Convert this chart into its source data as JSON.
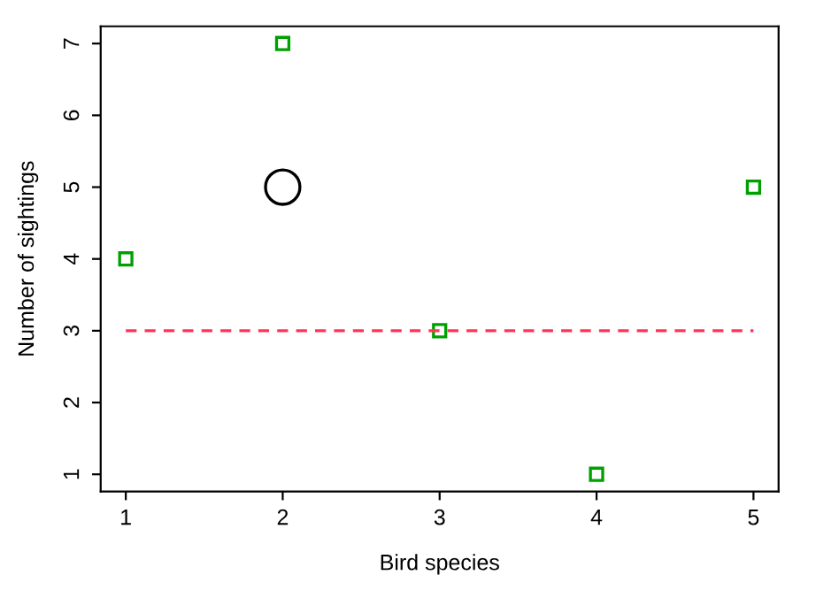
{
  "chart_data": {
    "type": "scatter",
    "xlabel": "Bird species",
    "ylabel": "Number of sightings",
    "xlim": [
      0.84,
      5.16
    ],
    "ylim": [
      0.76,
      7.24
    ],
    "xticks": [
      1,
      2,
      3,
      4,
      5
    ],
    "yticks": [
      1,
      2,
      3,
      4,
      5,
      6,
      7
    ],
    "grid": false,
    "legend": false,
    "series": [
      {
        "x": [
          1,
          2,
          3,
          4,
          5
        ],
        "values": [
          4,
          7,
          3,
          1,
          5
        ],
        "color": "#00a000",
        "marker": "square"
      },
      {
        "x": [
          2
        ],
        "values": [
          5
        ],
        "color": "#000000",
        "marker": "circle"
      },
      {
        "type": "line",
        "x": [
          1,
          5
        ],
        "values": [
          3,
          3
        ],
        "color": "#ff3355",
        "line_style": "dashed",
        "marker": "none"
      }
    ]
  }
}
